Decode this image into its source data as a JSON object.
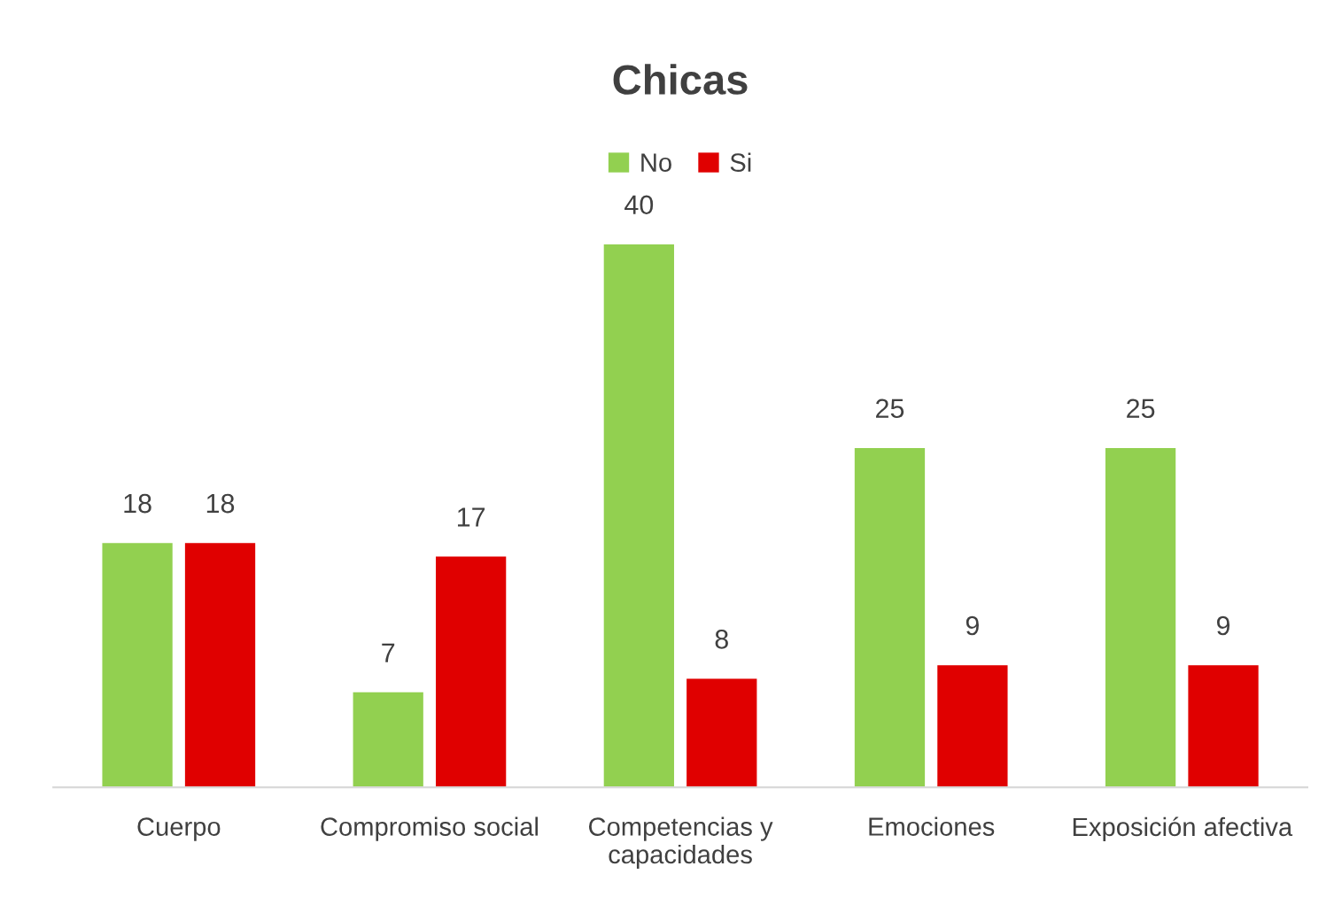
{
  "chart_data": {
    "type": "bar",
    "title": "Chicas",
    "categories": [
      "Cuerpo",
      "Compromiso social",
      "Competencias y\ncapacidades",
      "Emociones",
      "Exposición afectiva"
    ],
    "series": [
      {
        "name": "No",
        "color": "#92d050",
        "values": [
          18,
          7,
          40,
          25,
          25
        ]
      },
      {
        "name": "Si",
        "color": "#e00000",
        "values": [
          18,
          17,
          8,
          9,
          9
        ]
      }
    ],
    "data_labels": true,
    "legend": "top"
  }
}
